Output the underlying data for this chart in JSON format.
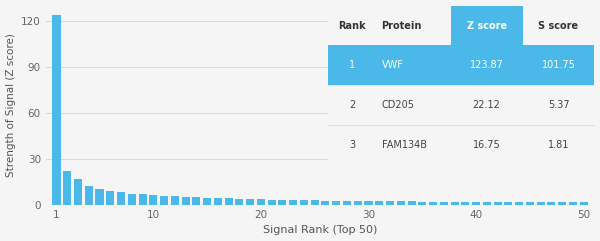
{
  "bar_color": "#4ab8e8",
  "background_color": "#f5f5f5",
  "xlabel": "Signal Rank (Top 50)",
  "ylabel": "Strength of Signal (Z score)",
  "ylim": [
    0,
    130
  ],
  "yticks": [
    0,
    30,
    60,
    90,
    120
  ],
  "xlim": [
    0,
    51
  ],
  "xticks": [
    1,
    10,
    20,
    30,
    40,
    50
  ],
  "n_bars": 50,
  "bar_values_approx": [
    123.87,
    22.12,
    16.75,
    12.5,
    10.5,
    9.2,
    8.2,
    7.5,
    7.0,
    6.5,
    6.0,
    5.6,
    5.3,
    5.0,
    4.7,
    4.5,
    4.3,
    4.1,
    3.9,
    3.7,
    3.5,
    3.4,
    3.2,
    3.1,
    3.0,
    2.9,
    2.8,
    2.7,
    2.6,
    2.5,
    2.45,
    2.4,
    2.35,
    2.3,
    2.25,
    2.2,
    2.15,
    2.1,
    2.05,
    2.0,
    1.95,
    1.9,
    1.87,
    1.84,
    1.81,
    1.78,
    1.75,
    1.72,
    1.69,
    1.66
  ],
  "table_data": [
    [
      "Rank",
      "Protein",
      "Z score",
      "S score"
    ],
    [
      "1",
      "VWF",
      "123.87",
      "101.75"
    ],
    [
      "2",
      "CD205",
      "22.12",
      "5.37"
    ],
    [
      "3",
      "FAM134B",
      "16.75",
      "1.81"
    ]
  ],
  "highlight_color": "#4ab8e8",
  "header_text_color": "#333333",
  "row1_text_color": "#ffffff",
  "row_text_color": "#444444",
  "grid_color": "#cccccc",
  "separator_color": "#dddddd",
  "table_fontsize": 7.0
}
